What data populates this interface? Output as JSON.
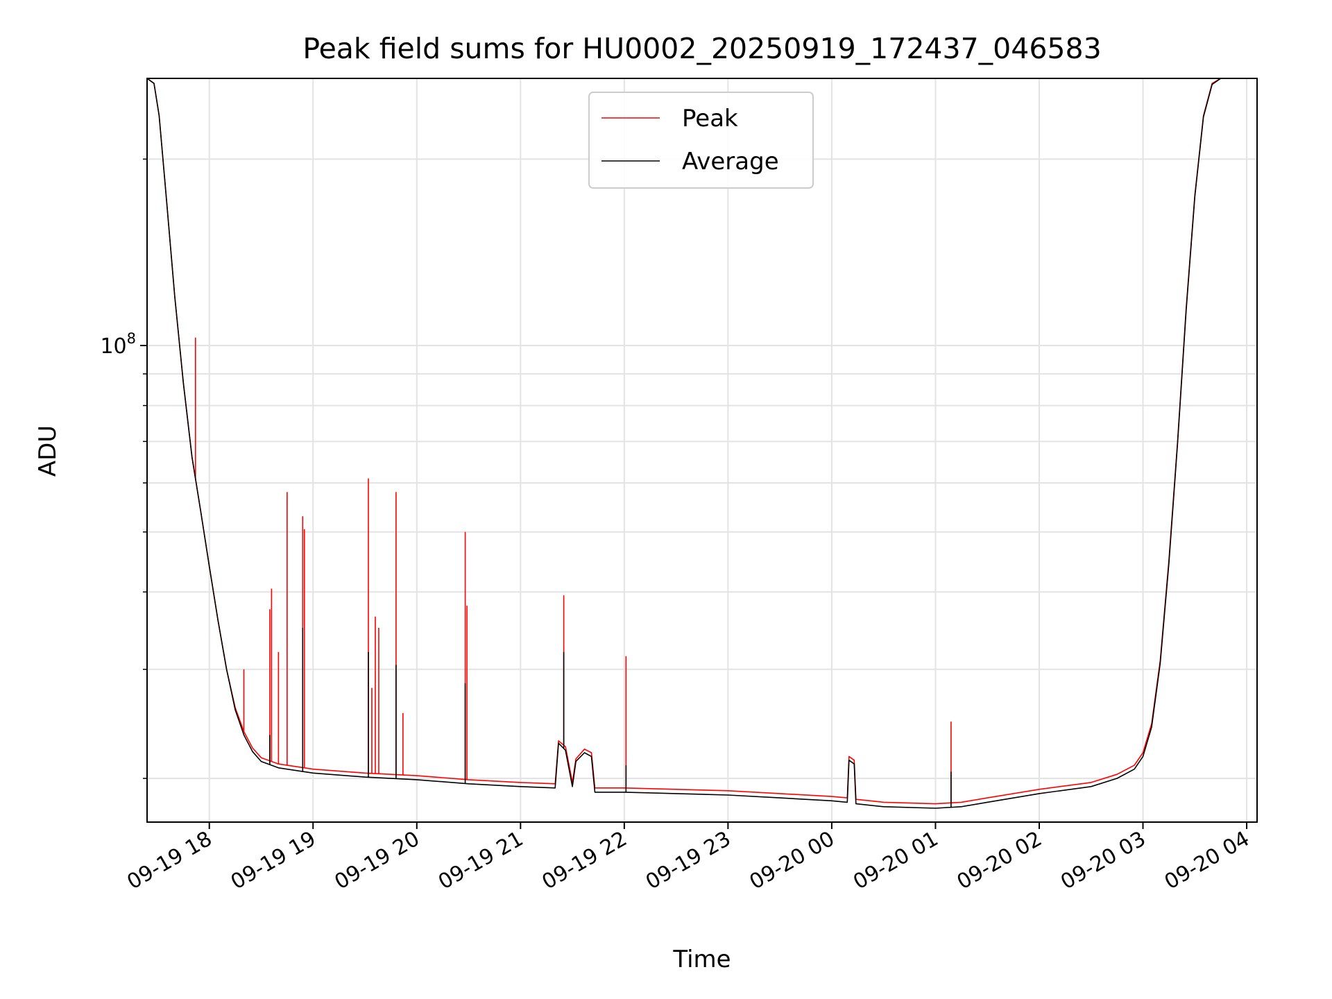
{
  "chart_data": {
    "type": "line",
    "title": "Peak field sums for HU0002_20250919_172437_046583",
    "xlabel": "Time",
    "ylabel": "ADU",
    "yscale": "log",
    "grid": true,
    "legend_position": "top-center",
    "x_tick_labels": [
      "09-19 18",
      "09-19 19",
      "09-19 20",
      "09-19 21",
      "09-19 22",
      "09-19 23",
      "09-20 00",
      "09-20 01",
      "09-20 02",
      "09-20 03",
      "09-20 04"
    ],
    "x_ticks": [
      "2025-09-19 18:00",
      "2025-09-19 19:00",
      "2025-09-19 20:00",
      "2025-09-19 21:00",
      "2025-09-19 22:00",
      "2025-09-19 23:00",
      "2025-09-20 00:00",
      "2025-09-20 01:00",
      "2025-09-20 02:00",
      "2025-09-20 03:00",
      "2025-09-20 04:00"
    ],
    "xlim": [
      "2025-09-19 17:24",
      "2025-09-20 04:06"
    ],
    "y_tick_label": {
      "base": "10",
      "exponent": "8"
    },
    "y_major_tick": 100000000,
    "y_minor_ticks": [
      20000000,
      30000000,
      40000000,
      50000000,
      60000000,
      70000000,
      80000000,
      90000000,
      200000000
    ],
    "ylim": [
      17000000,
      270000000
    ],
    "series": [
      {
        "name": "Peak",
        "color": "#ff0000",
        "points": [
          [
            "2025-09-19 17:24",
            270000000
          ],
          [
            "2025-09-19 17:28",
            265000000
          ],
          [
            "2025-09-19 17:31",
            235000000
          ],
          [
            "2025-09-19 17:35",
            175000000
          ],
          [
            "2025-09-19 17:40",
            120000000
          ],
          [
            "2025-09-19 17:45",
            87000000
          ],
          [
            "2025-09-19 17:50",
            66000000
          ],
          [
            "2025-09-19 17:55",
            54000000
          ],
          [
            "2025-09-19 18:00",
            44000000
          ],
          [
            "2025-09-19 18:05",
            36000000
          ],
          [
            "2025-09-19 18:10",
            30000000
          ],
          [
            "2025-09-19 18:15",
            26000000
          ],
          [
            "2025-09-19 18:20",
            23800000
          ],
          [
            "2025-09-19 18:25",
            22400000
          ],
          [
            "2025-09-19 18:30",
            21600000
          ],
          [
            "2025-09-19 18:40",
            21100000
          ],
          [
            "2025-09-19 19:00",
            20700000
          ],
          [
            "2025-09-19 19:30",
            20400000
          ],
          [
            "2025-09-19 20:00",
            20200000
          ],
          [
            "2025-09-19 20:30",
            19900000
          ],
          [
            "2025-09-19 21:00",
            19700000
          ],
          [
            "2025-09-19 21:20",
            19600000
          ],
          [
            "2025-09-19 21:22",
            23000000
          ],
          [
            "2025-09-19 21:26",
            22500000
          ],
          [
            "2025-09-19 21:30",
            19700000
          ],
          [
            "2025-09-19 21:32",
            21500000
          ],
          [
            "2025-09-19 21:37",
            22300000
          ],
          [
            "2025-09-19 21:41",
            22000000
          ],
          [
            "2025-09-19 21:43",
            19300000
          ],
          [
            "2025-09-19 22:00",
            19300000
          ],
          [
            "2025-09-19 22:30",
            19200000
          ],
          [
            "2025-09-19 23:00",
            19100000
          ],
          [
            "2025-09-19 23:30",
            18900000
          ],
          [
            "2025-09-20 00:00",
            18700000
          ],
          [
            "2025-09-20 00:09",
            18600000
          ],
          [
            "2025-09-20 00:10",
            21700000
          ],
          [
            "2025-09-20 00:13",
            21400000
          ],
          [
            "2025-09-20 00:14",
            18500000
          ],
          [
            "2025-09-20 00:30",
            18300000
          ],
          [
            "2025-09-20 01:00",
            18200000
          ],
          [
            "2025-09-20 01:15",
            18300000
          ],
          [
            "2025-09-20 01:30",
            18600000
          ],
          [
            "2025-09-20 02:00",
            19200000
          ],
          [
            "2025-09-20 02:30",
            19700000
          ],
          [
            "2025-09-20 02:45",
            20300000
          ],
          [
            "2025-09-20 02:55",
            21000000
          ],
          [
            "2025-09-20 03:00",
            22000000
          ],
          [
            "2025-09-20 03:05",
            24500000
          ],
          [
            "2025-09-20 03:10",
            31000000
          ],
          [
            "2025-09-20 03:15",
            45000000
          ],
          [
            "2025-09-20 03:20",
            70000000
          ],
          [
            "2025-09-20 03:25",
            115000000
          ],
          [
            "2025-09-20 03:30",
            175000000
          ],
          [
            "2025-09-20 03:35",
            235000000
          ],
          [
            "2025-09-20 03:40",
            265000000
          ],
          [
            "2025-09-20 03:45",
            270000000
          ],
          [
            "2025-09-20 04:06",
            270000000
          ]
        ],
        "spikes": [
          [
            "2025-09-19 17:52",
            103000000
          ],
          [
            "2025-09-19 18:20",
            30000000
          ],
          [
            "2025-09-19 18:35",
            37500000
          ],
          [
            "2025-09-19 18:36",
            40500000
          ],
          [
            "2025-09-19 18:40",
            32000000
          ],
          [
            "2025-09-19 18:45",
            58000000
          ],
          [
            "2025-09-19 18:54",
            53000000
          ],
          [
            "2025-09-19 18:55",
            50500000
          ],
          [
            "2025-09-19 19:32",
            61000000
          ],
          [
            "2025-09-19 19:34",
            28000000
          ],
          [
            "2025-09-19 19:36",
            36500000
          ],
          [
            "2025-09-19 19:38",
            35000000
          ],
          [
            "2025-09-19 19:48",
            58000000
          ],
          [
            "2025-09-19 19:52",
            25500000
          ],
          [
            "2025-09-19 20:28",
            50000000
          ],
          [
            "2025-09-19 20:29",
            38000000
          ],
          [
            "2025-09-19 21:25",
            39500000
          ],
          [
            "2025-09-19 22:01",
            31500000
          ],
          [
            "2025-09-20 01:09",
            24700000
          ]
        ]
      },
      {
        "name": "Average",
        "color": "#000000",
        "points": [
          [
            "2025-09-19 17:24",
            270000000
          ],
          [
            "2025-09-19 17:28",
            265000000
          ],
          [
            "2025-09-19 17:31",
            235000000
          ],
          [
            "2025-09-19 17:35",
            175000000
          ],
          [
            "2025-09-19 17:40",
            120000000
          ],
          [
            "2025-09-19 17:45",
            87000000
          ],
          [
            "2025-09-19 17:50",
            66000000
          ],
          [
            "2025-09-19 17:55",
            54000000
          ],
          [
            "2025-09-19 18:00",
            44000000
          ],
          [
            "2025-09-19 18:05",
            36000000
          ],
          [
            "2025-09-19 18:10",
            30000000
          ],
          [
            "2025-09-19 18:15",
            25800000
          ],
          [
            "2025-09-19 18:20",
            23500000
          ],
          [
            "2025-09-19 18:25",
            22100000
          ],
          [
            "2025-09-19 18:30",
            21300000
          ],
          [
            "2025-09-19 18:40",
            20800000
          ],
          [
            "2025-09-19 19:00",
            20400000
          ],
          [
            "2025-09-19 19:30",
            20100000
          ],
          [
            "2025-09-19 20:00",
            19900000
          ],
          [
            "2025-09-19 20:30",
            19600000
          ],
          [
            "2025-09-19 21:00",
            19400000
          ],
          [
            "2025-09-19 21:20",
            19300000
          ],
          [
            "2025-09-19 21:22",
            22800000
          ],
          [
            "2025-09-19 21:26",
            22200000
          ],
          [
            "2025-09-19 21:30",
            19400000
          ],
          [
            "2025-09-19 21:32",
            21300000
          ],
          [
            "2025-09-19 21:37",
            22000000
          ],
          [
            "2025-09-19 21:41",
            21700000
          ],
          [
            "2025-09-19 21:43",
            19000000
          ],
          [
            "2025-09-19 22:00",
            19000000
          ],
          [
            "2025-09-19 22:30",
            18900000
          ],
          [
            "2025-09-19 23:00",
            18800000
          ],
          [
            "2025-09-19 23:30",
            18600000
          ],
          [
            "2025-09-20 00:00",
            18400000
          ],
          [
            "2025-09-20 00:09",
            18300000
          ],
          [
            "2025-09-20 00:10",
            21400000
          ],
          [
            "2025-09-20 00:13",
            21100000
          ],
          [
            "2025-09-20 00:14",
            18200000
          ],
          [
            "2025-09-20 00:30",
            18000000
          ],
          [
            "2025-09-20 01:00",
            17900000
          ],
          [
            "2025-09-20 01:15",
            18000000
          ],
          [
            "2025-09-20 01:30",
            18300000
          ],
          [
            "2025-09-20 02:00",
            18900000
          ],
          [
            "2025-09-20 02:30",
            19400000
          ],
          [
            "2025-09-20 02:45",
            20000000
          ],
          [
            "2025-09-20 02:55",
            20700000
          ],
          [
            "2025-09-20 03:00",
            21700000
          ],
          [
            "2025-09-20 03:05",
            24200000
          ],
          [
            "2025-09-20 03:10",
            30700000
          ],
          [
            "2025-09-20 03:15",
            44500000
          ],
          [
            "2025-09-20 03:20",
            69500000
          ],
          [
            "2025-09-20 03:25",
            114000000
          ],
          [
            "2025-09-20 03:30",
            174000000
          ],
          [
            "2025-09-20 03:35",
            234000000
          ],
          [
            "2025-09-20 03:40",
            264000000
          ],
          [
            "2025-09-20 03:45",
            270000000
          ],
          [
            "2025-09-20 04:06",
            270000000
          ]
        ],
        "spikes": [
          [
            "2025-09-19 18:35",
            23500000
          ],
          [
            "2025-09-19 18:54",
            35000000
          ],
          [
            "2025-09-19 19:32",
            32000000
          ],
          [
            "2025-09-19 19:48",
            30500000
          ],
          [
            "2025-09-19 20:28",
            28500000
          ],
          [
            "2025-09-19 21:25",
            32000000
          ],
          [
            "2025-09-19 22:01",
            21000000
          ],
          [
            "2025-09-20 01:09",
            20500000
          ]
        ]
      }
    ]
  }
}
